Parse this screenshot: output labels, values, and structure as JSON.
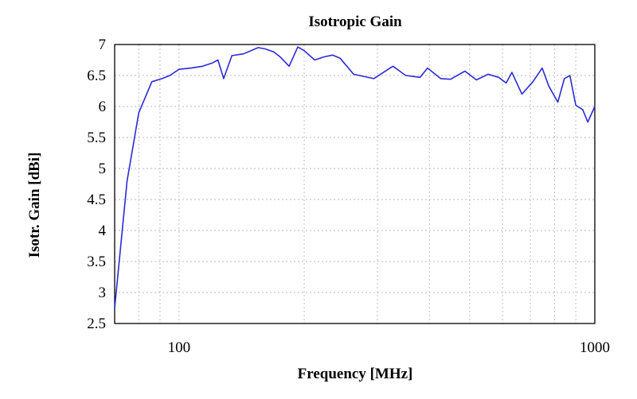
{
  "chart_data": {
    "type": "line",
    "title": "Isotropic Gain",
    "xlabel": "Frequency [MHz]",
    "ylabel": "Isotr. Gain [dBi]",
    "x_scale": "log",
    "xlim": [
      70,
      1000
    ],
    "ylim": [
      2.5,
      7
    ],
    "x_tick_labels": [
      {
        "value": 100,
        "label": "100"
      },
      {
        "value": 1000,
        "label": "1000"
      }
    ],
    "y_ticks": [
      "2.5",
      "3",
      "3.5",
      "4",
      "4.5",
      "5",
      "5.5",
      "6",
      "6.5",
      "7"
    ],
    "grid": true,
    "line_color": "#2a2ad8",
    "series": [
      {
        "x": [
          70,
          75,
          80,
          86,
          91,
          95,
          100,
          107,
          114,
          120,
          124,
          128,
          134,
          143,
          155,
          161,
          169,
          175,
          184,
          193,
          200,
          212,
          223,
          234,
          244,
          263,
          294,
          327,
          351,
          380,
          396,
          426,
          450,
          487,
          519,
          554,
          587,
          612,
          632,
          668,
          710,
          747,
          775,
          815,
          845,
          871,
          900,
          935,
          962,
          1000
        ],
        "y": [
          2.75,
          4.8,
          5.9,
          6.4,
          6.45,
          6.5,
          6.6,
          6.62,
          6.65,
          6.7,
          6.75,
          6.45,
          6.82,
          6.85,
          6.95,
          6.93,
          6.88,
          6.8,
          6.65,
          6.96,
          6.9,
          6.75,
          6.8,
          6.83,
          6.78,
          6.52,
          6.45,
          6.65,
          6.5,
          6.47,
          6.62,
          6.45,
          6.44,
          6.57,
          6.43,
          6.52,
          6.47,
          6.38,
          6.55,
          6.2,
          6.4,
          6.62,
          6.33,
          6.07,
          6.45,
          6.5,
          6.02,
          5.95,
          5.75,
          6.0
        ]
      }
    ]
  }
}
